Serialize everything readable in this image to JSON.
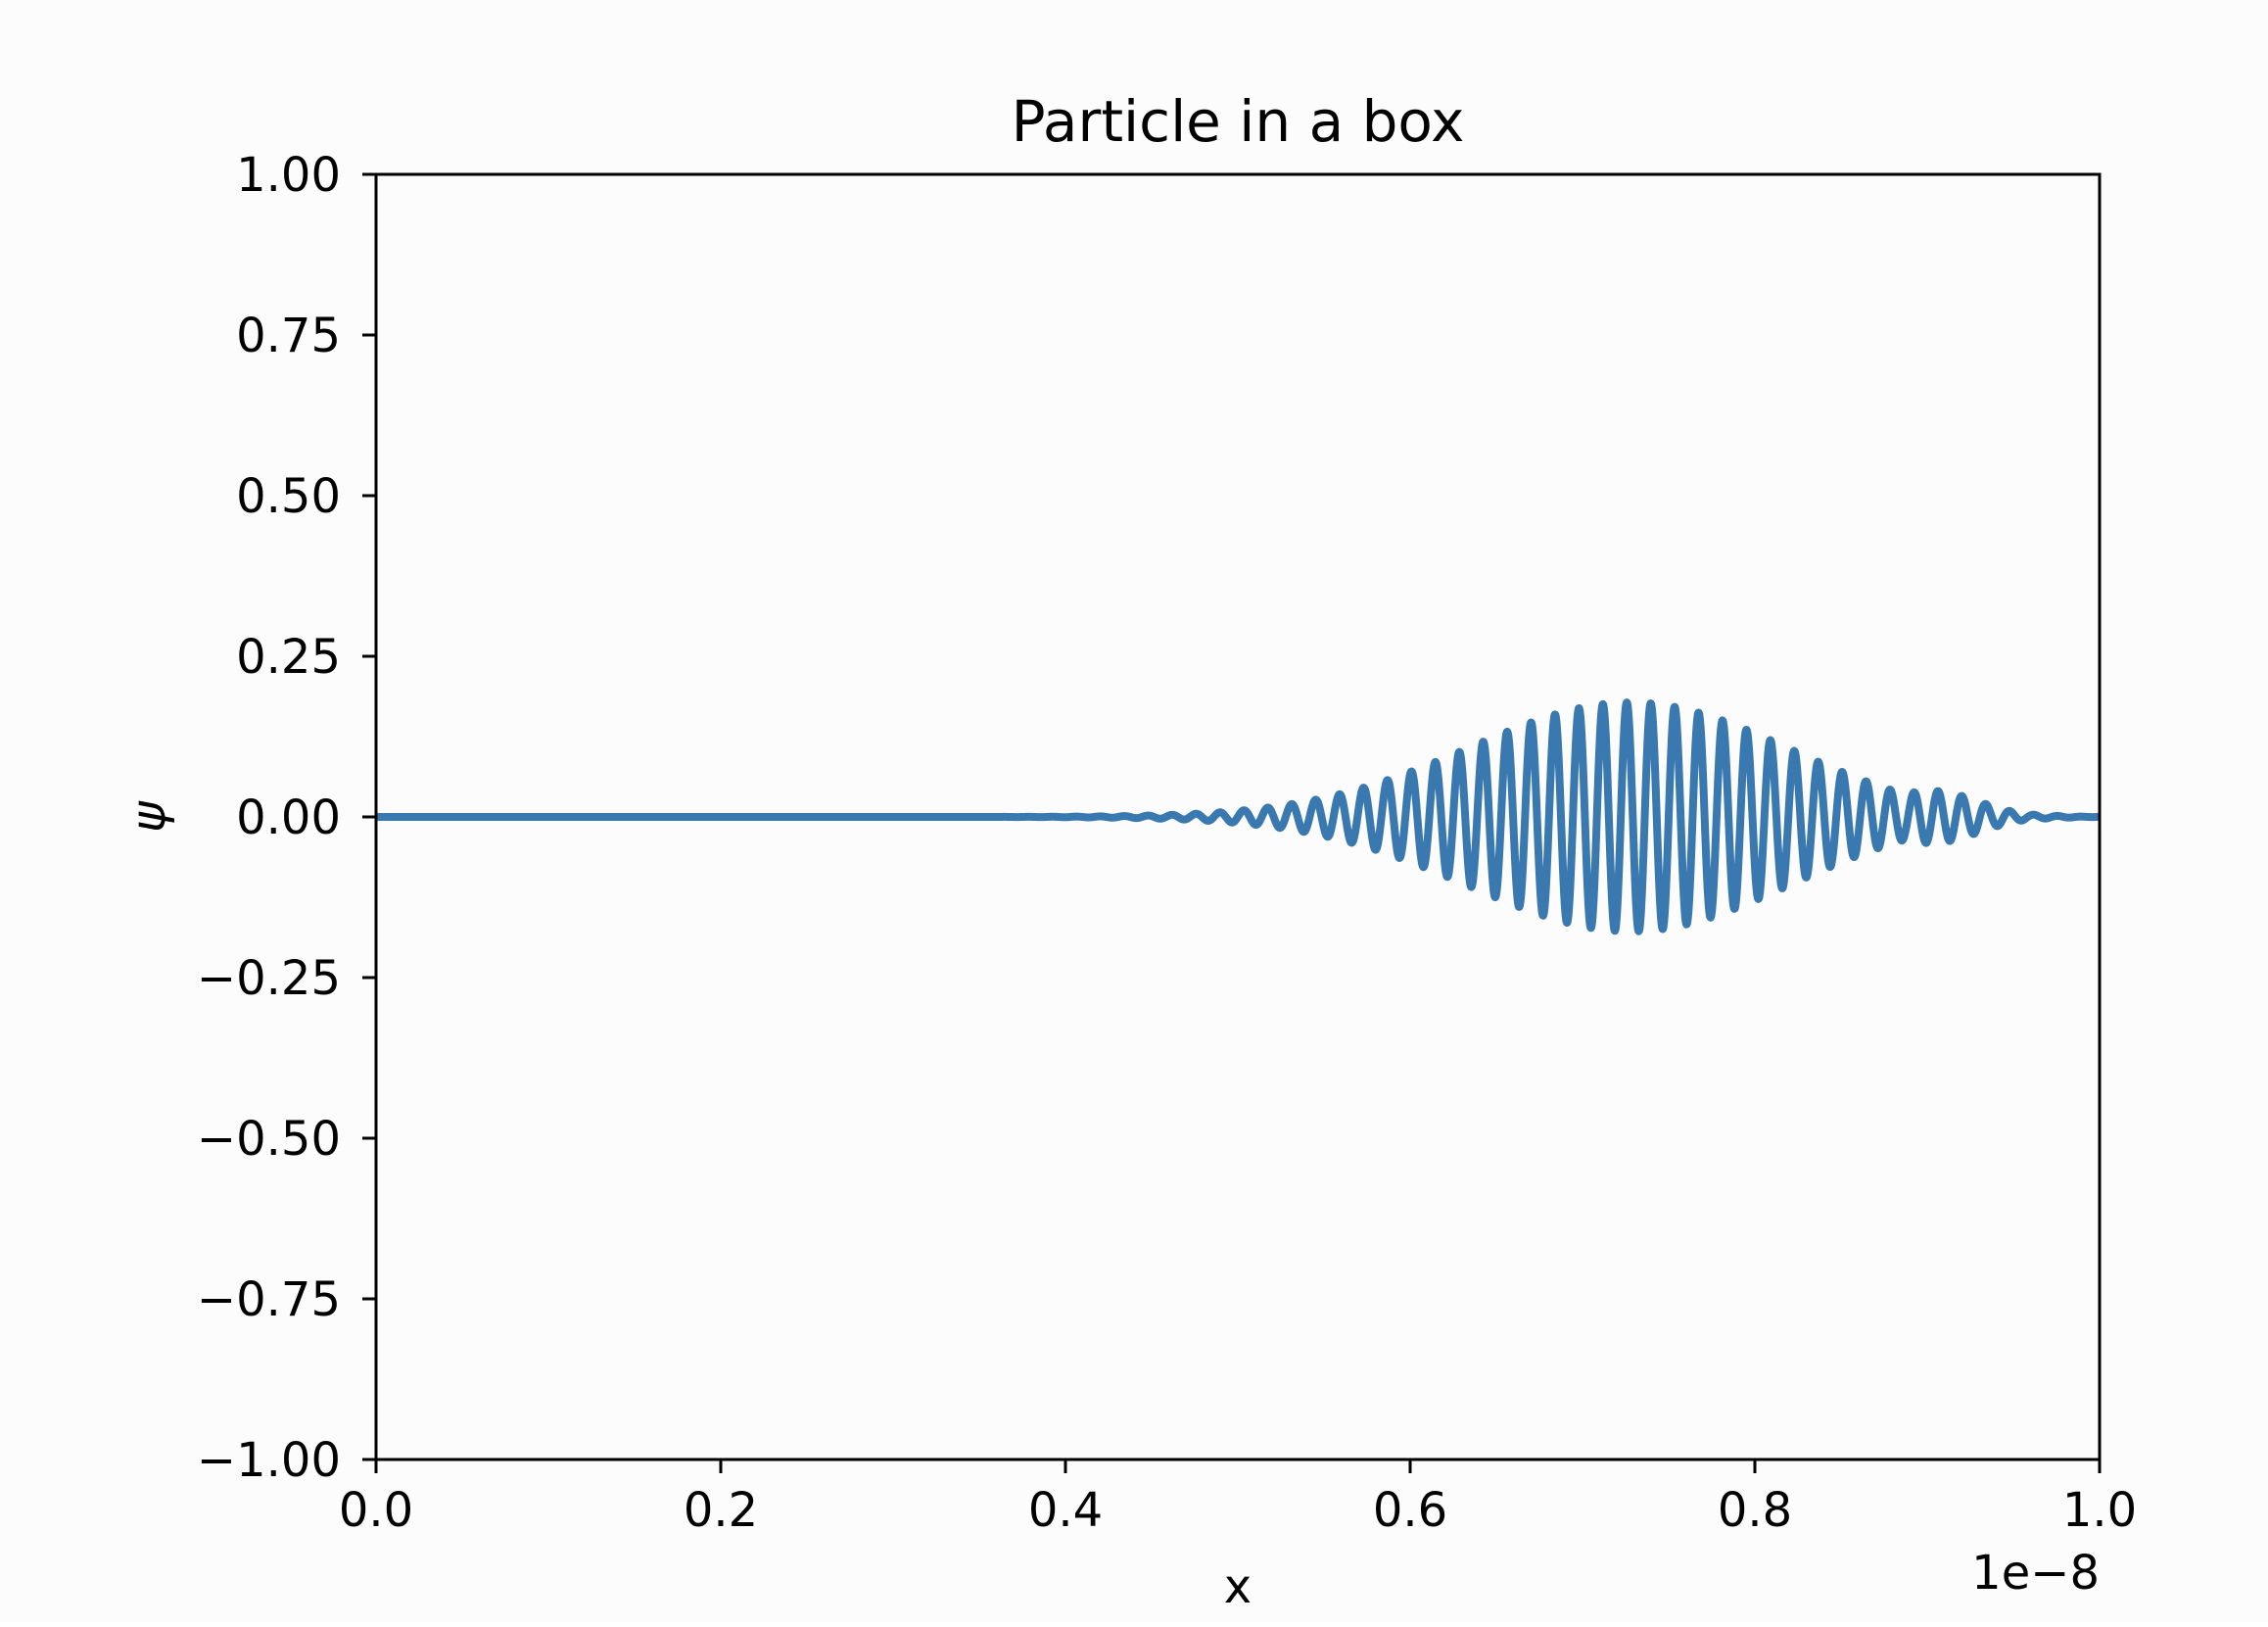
{
  "chart_data": {
    "type": "line",
    "title": "Particle in a box",
    "xlabel": "x",
    "ylabel": "ψ",
    "x_offset_text": "1e−8",
    "xlim": [
      0.0,
      1.0
    ],
    "ylim": [
      -1.0,
      1.0
    ],
    "x_scale_exponent": -8,
    "xticks": [
      0.0,
      0.2,
      0.4,
      0.6,
      0.8,
      1.0
    ],
    "xtick_labels": [
      "0.0",
      "0.2",
      "0.4",
      "0.6",
      "0.8",
      "1.0"
    ],
    "yticks": [
      1.0,
      0.75,
      0.5,
      0.25,
      0.0,
      -0.25,
      -0.5,
      -0.75,
      -1.0
    ],
    "ytick_labels": [
      "1.00",
      "0.75",
      "0.50",
      "0.25",
      "0.00",
      "−0.25",
      "−0.50",
      "−0.75",
      "−1.00"
    ],
    "grid": false,
    "series": [
      {
        "color": "#3a78b0",
        "description_points": [
          [
            0.0,
            0.0
          ],
          [
            0.35,
            0.0
          ],
          [
            0.4,
            0.003
          ],
          [
            0.45,
            0.015
          ],
          [
            0.5,
            0.045
          ],
          [
            0.55,
            0.09
          ],
          [
            0.6,
            0.14
          ],
          [
            0.65,
            0.19
          ],
          [
            0.7,
            0.225
          ],
          [
            0.75,
            0.245
          ],
          [
            0.8,
            0.23
          ],
          [
            0.85,
            0.195
          ],
          [
            0.88,
            0.17
          ],
          [
            0.9,
            0.14
          ],
          [
            0.93,
            0.13
          ],
          [
            0.95,
            0.09
          ],
          [
            0.97,
            0.04
          ],
          [
            0.99,
            0.02
          ],
          [
            1.0,
            0.0
          ]
        ],
        "envelope_center": 0.755,
        "envelope_width": 0.1,
        "envelope_peak": 0.245,
        "oscillation_cycles": 72
      }
    ]
  }
}
